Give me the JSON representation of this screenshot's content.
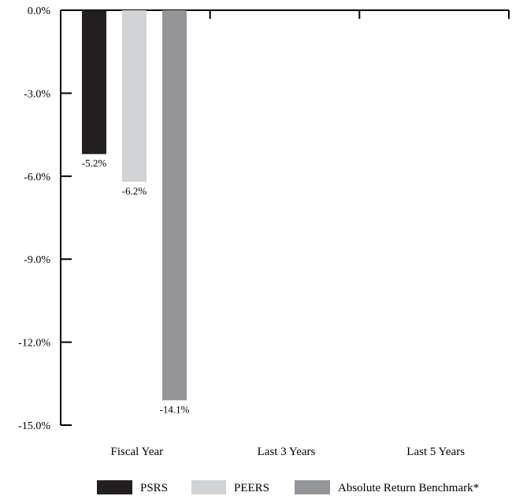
{
  "chart_data": {
    "type": "bar",
    "title": "",
    "xlabel": "",
    "ylabel": "",
    "categories": [
      "Fiscal Year",
      "Last 3 Years",
      "Last 5 Years"
    ],
    "series": [
      {
        "name": "PSRS",
        "color": "#231f20",
        "values": [
          -5.2,
          null,
          null
        ],
        "labels": [
          "-5.2%",
          "",
          ""
        ]
      },
      {
        "name": "PEERS",
        "color": "#d1d2d4",
        "values": [
          -6.2,
          null,
          null
        ],
        "labels": [
          "-6.2%",
          "",
          ""
        ]
      },
      {
        "name": "Absolute Return Benchmark*",
        "color": "#939598",
        "values": [
          -14.1,
          null,
          null
        ],
        "labels": [
          "-14.1%",
          "",
          ""
        ]
      }
    ],
    "ylim": [
      -15.0,
      0.0
    ],
    "yticks": [
      0.0,
      -3.0,
      -6.0,
      -9.0,
      -12.0,
      -15.0
    ],
    "ytick_labels": [
      "0.0%",
      "-3.0%",
      "-6.0%",
      "-9.0%",
      "-12.0%",
      "-15.0%"
    ],
    "legend_position": "bottom",
    "grid": false
  }
}
